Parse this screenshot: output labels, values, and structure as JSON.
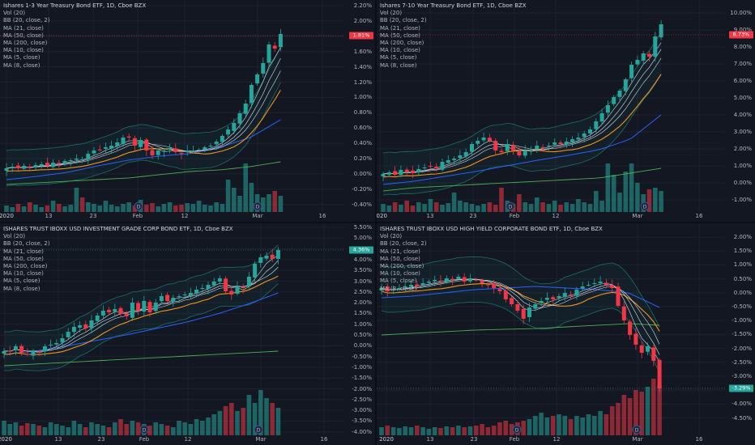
{
  "panels": [
    {
      "id": "p1",
      "title": "Ishares 1-3 Year Treasury Bond ETF, 1D, Cboe BZX",
      "indicators": [
        "Vol (20)",
        "BB (20, close, 2)",
        "MA (21, close)",
        "MA (50, close)",
        "MA (200, close)",
        "MA (10, close)",
        "MA (5, close)",
        "MA (8, close)"
      ],
      "y_ticks": [
        "2.20%",
        "2.00%",
        "1.80%",
        "1.60%",
        "1.40%",
        "1.20%",
        "1.00%",
        "0.80%",
        "0.60%",
        "0.40%",
        "0.20%",
        "0.00%",
        "-0.20%",
        "-0.40%"
      ],
      "x_ticks": [
        "2020",
        "13",
        "23",
        "Feb",
        "12",
        "Mar",
        "16"
      ],
      "last_value": "1.81%",
      "last_color": "#f23645",
      "event_badges": [
        "D",
        "D"
      ]
    },
    {
      "id": "p2",
      "title": "Ishares 7-10 Year Treasury Bond ETF, 1D, Cboe BZX",
      "indicators": [
        "Vol (20)",
        "BB (20, close, 2)",
        "MA (21, close)",
        "MA (50, close)",
        "MA (200, close)",
        "MA (10, close)",
        "MA (5, close)",
        "MA (8, close)"
      ],
      "y_ticks": [
        "10.00%",
        "9.00%",
        "8.00%",
        "7.00%",
        "6.00%",
        "5.00%",
        "4.00%",
        "3.00%",
        "2.00%",
        "1.00%",
        "0.00%",
        "-1.00%"
      ],
      "x_ticks": [
        "2020",
        "13",
        "23",
        "Feb",
        "12",
        "Mar",
        "16"
      ],
      "last_value": "8.73%",
      "last_color": "#f23645",
      "event_badges": [
        "D",
        "D"
      ]
    },
    {
      "id": "p3",
      "title": "ISHARES TRUST IBOXX USD INVESTMENT GRADE CORP BOND ETF, 1D, Cboe BZX",
      "indicators": [
        "Vol (20)",
        "BB (20, close, 2)",
        "MA (21, close)",
        "MA (50, close)",
        "MA (200, close)",
        "MA (10, close)",
        "MA (5, close)",
        "MA (8, close)"
      ],
      "y_ticks": [
        "5.50%",
        "5.00%",
        "4.50%",
        "4.00%",
        "3.50%",
        "3.00%",
        "2.50%",
        "2.00%",
        "1.50%",
        "1.00%",
        "0.50%",
        "0.00%",
        "-0.50%",
        "-1.00%",
        "-1.50%",
        "-2.00%",
        "-2.50%",
        "-3.00%",
        "-3.50%",
        "-4.00%"
      ],
      "x_ticks": [
        "2020",
        "13",
        "23",
        "Feb",
        "12",
        "Mar",
        "16"
      ],
      "last_value": "4.36%",
      "last_color": "#26a69a",
      "event_badges": [
        "D",
        "D"
      ]
    },
    {
      "id": "p4",
      "title": "ISHARES TRUST IBOXX USD HIGH YIELD CORPORATE BOND ETF, 1D, Cboe BZX",
      "indicators": [
        "Vol (20)",
        "BB (20, close, 2)",
        "MA (21, close)",
        "MA (50, close)",
        "MA (200, close)",
        "MA (10, close)",
        "MA (5, close)",
        "MA (8, close)"
      ],
      "y_ticks": [
        "2.00%",
        "1.50%",
        "1.00%",
        "0.50%",
        "0.00%",
        "-0.50%",
        "-1.00%",
        "-1.50%",
        "-2.00%",
        "-2.50%",
        "-3.00%",
        "-3.50%",
        "-4.00%",
        "-4.50%"
      ],
      "x_ticks": [
        "2020",
        "13",
        "23",
        "Feb",
        "12",
        "Mar",
        "16"
      ],
      "last_value": "-3.29%",
      "last_color": "#26a69a",
      "event_badges": [
        "D",
        "D"
      ]
    }
  ]
}
